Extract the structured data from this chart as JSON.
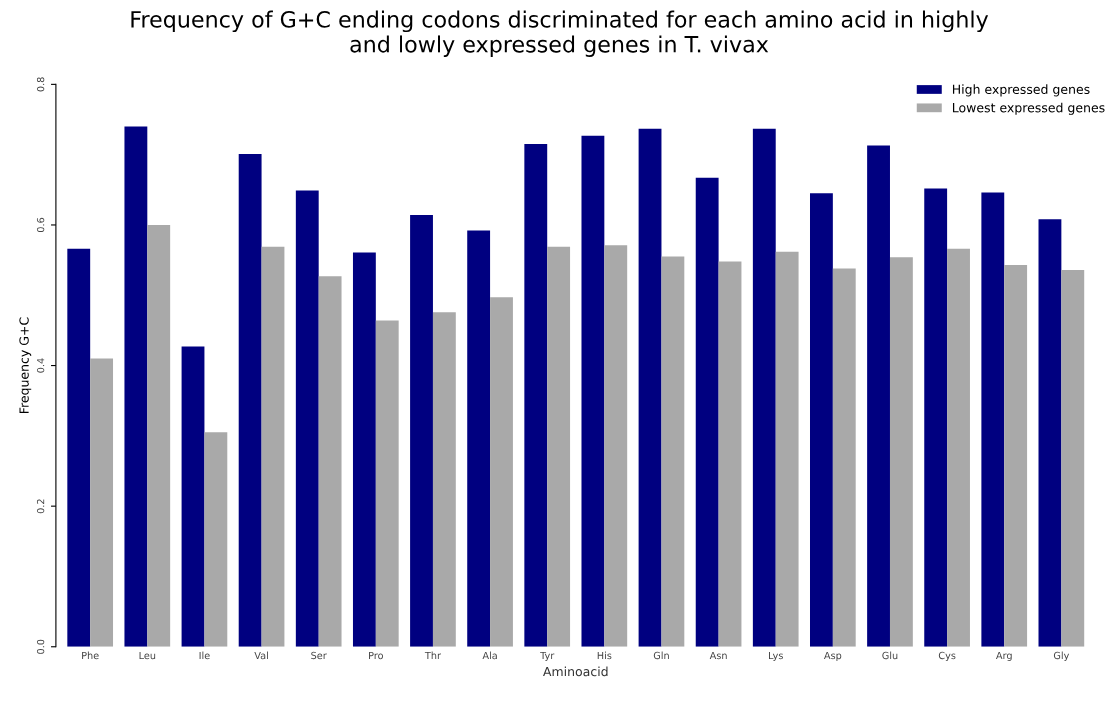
{
  "chart_data": {
    "type": "bar",
    "title": "Frequency of G+C ending codons discriminated for each amino acid in highly\nand lowly expressed genes in T. vivax",
    "xlabel": "Aminoacid",
    "ylabel": "Frequency G+C",
    "categories": [
      "Phe",
      "Leu",
      "Ile",
      "Val",
      "Ser",
      "Pro",
      "Thr",
      "Ala",
      "Tyr",
      "His",
      "Gln",
      "Asn",
      "Lys",
      "Asp",
      "Glu",
      "Cys",
      "Arg",
      "Gly"
    ],
    "series": [
      {
        "name": "High expressed genes",
        "color": "#000080",
        "values": [
          0.566,
          0.74,
          0.427,
          0.701,
          0.649,
          0.561,
          0.614,
          0.592,
          0.715,
          0.727,
          0.737,
          0.667,
          0.737,
          0.645,
          0.713,
          0.652,
          0.646,
          0.608
        ]
      },
      {
        "name": "Lowest expressed genes",
        "color": "#a9a9a9",
        "values": [
          0.41,
          0.6,
          0.305,
          0.569,
          0.527,
          0.464,
          0.476,
          0.497,
          0.569,
          0.571,
          0.555,
          0.548,
          0.562,
          0.538,
          0.554,
          0.566,
          0.543,
          0.536
        ]
      }
    ],
    "ylim": [
      0,
      0.8
    ],
    "yticks": [
      {
        "value": 0,
        "label": "0.0"
      },
      0.2,
      0.4,
      0.6,
      0.8
    ],
    "legend": "top right",
    "grid": false
  }
}
